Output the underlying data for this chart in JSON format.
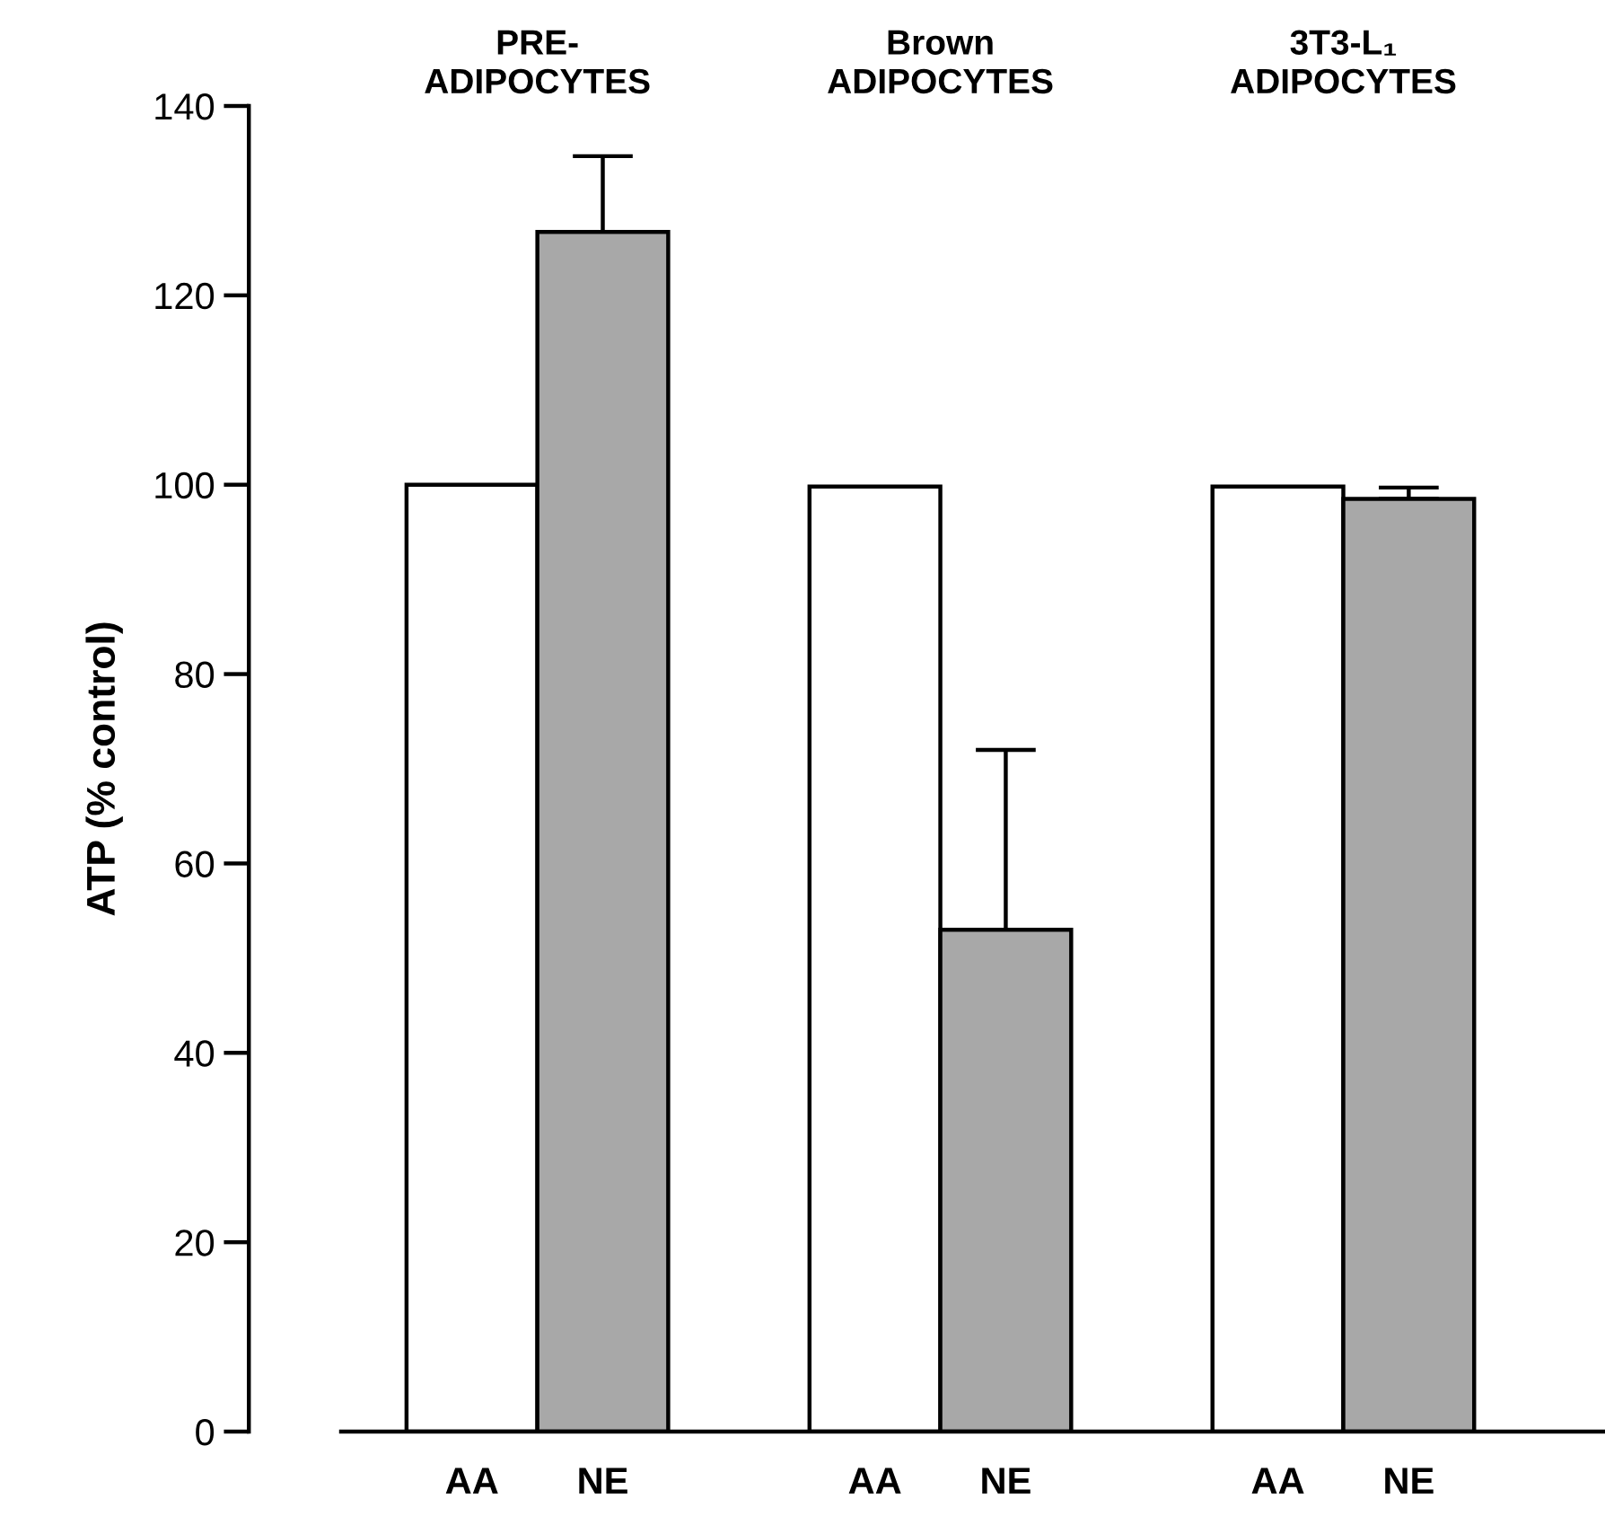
{
  "chart_data": {
    "type": "bar",
    "categories": [
      "AA",
      "NE",
      "AA",
      "NE",
      "AA",
      "NE"
    ],
    "values": [
      100,
      126.7,
      99.8,
      53,
      99.8,
      98.5
    ],
    "colors": [
      "#ffffff",
      "#a8a8a8",
      "#ffffff",
      "#a8a8a8",
      "#ffffff",
      "#a8a8a8"
    ],
    "errors": [
      null,
      [
        126.7,
        134.7
      ],
      null,
      [
        53,
        72
      ],
      null,
      [
        98.5,
        99.7
      ]
    ],
    "ylabel": "ATP (% control)",
    "annotations": [
      "PRE-\nADIPOCYTES",
      "Brown\nADIPOCYTES",
      "3T3-L₁\nADIPOCYTES"
    ],
    "ylim": [
      0,
      140
    ],
    "yticks": [
      0,
      20,
      40,
      60,
      80,
      100,
      120,
      140
    ],
    "grid": false,
    "legend": false
  }
}
